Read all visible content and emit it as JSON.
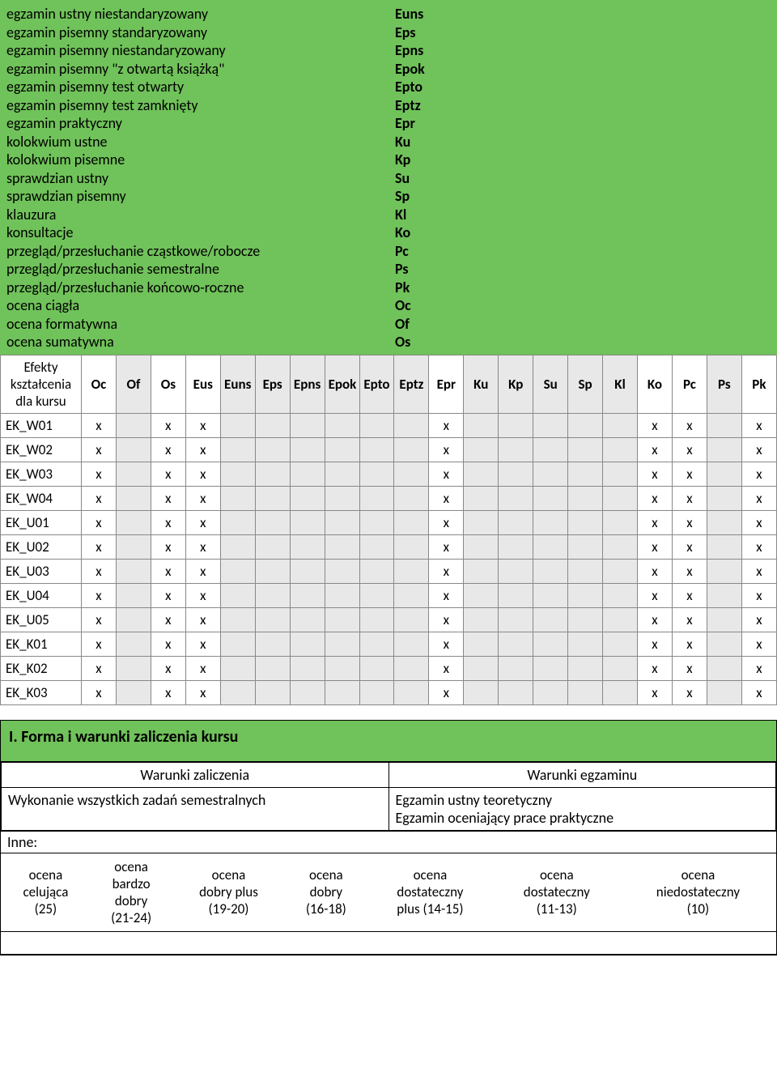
{
  "legend": [
    {
      "desc": "egzamin ustny niestandaryzowany",
      "code": "Euns"
    },
    {
      "desc": "egzamin pisemny standaryzowany",
      "code": "Eps"
    },
    {
      "desc": "egzamin pisemny niestandaryzowany",
      "code": "Epns"
    },
    {
      "desc": "egzamin pisemny \"z otwartą książką\"",
      "code": "Epok"
    },
    {
      "desc": "egzamin pisemny test otwarty",
      "code": "Epto"
    },
    {
      "desc": "egzamin pisemny test zamknięty",
      "code": "Eptz"
    },
    {
      "desc": "egzamin praktyczny",
      "code": "Epr"
    },
    {
      "desc": "kolokwium ustne",
      "code": "Ku"
    },
    {
      "desc": "kolokwium pisemne",
      "code": "Kp"
    },
    {
      "desc": "sprawdzian ustny",
      "code": "Su"
    },
    {
      "desc": "sprawdzian pisemny",
      "code": "Sp"
    },
    {
      "desc": "klauzura",
      "code": "Kl"
    },
    {
      "desc": "konsultacje",
      "code": "Ko"
    },
    {
      "desc": "przegląd/przesłuchanie cząstkowe/robocze",
      "code": "Pc"
    },
    {
      "desc": "przegląd/przesłuchanie semestralne",
      "code": "Ps"
    },
    {
      "desc": "przegląd/przesłuchanie końcowo-roczne",
      "code": "Pk"
    },
    {
      "desc": "ocena ciągła",
      "code": "Oc"
    },
    {
      "desc": "ocena formatywna",
      "code": "Of"
    },
    {
      "desc": "ocena sumatywna",
      "code": "Os"
    }
  ],
  "matrix": {
    "first_header": "Efekty kształcenia dla kursu",
    "columns": [
      "Oc",
      "Of",
      "Os",
      "Eus",
      "Euns",
      "Eps",
      "Epns",
      "Epok",
      "Epto",
      "Eptz",
      "Epr",
      "Ku",
      "Kp",
      "Su",
      "Sp",
      "Kl",
      "Ko",
      "Pc",
      "Ps",
      "Pk"
    ],
    "white_cols": [
      0,
      2,
      3,
      10,
      16,
      17,
      19
    ],
    "row_labels": [
      "EK_W01",
      "EK_W02",
      "EK_W03",
      "EK_W04",
      "EK_U01",
      "EK_U02",
      "EK_U03",
      "EK_U04",
      "EK_U05",
      "EK_K01",
      "EK_K02",
      "EK_K03"
    ],
    "mark": "x",
    "mark_cols": [
      0,
      2,
      3,
      10,
      16,
      17,
      19
    ]
  },
  "section2": {
    "title": "I. Forma i warunki zaliczenia kursu",
    "cond_headers": [
      "Warunki zaliczenia",
      "Warunki egzaminu"
    ],
    "cond_left": "Wykonanie wszystkich zadań semestralnych",
    "cond_right_1": "Egzamin ustny teoretyczny",
    "cond_right_2": "Egzamin oceniający prace praktyczne",
    "inne": "Inne:",
    "grades": [
      {
        "l1": "ocena",
        "l2": "celująca",
        "l3": "",
        "l4": "(25)"
      },
      {
        "l1": "ocena",
        "l2": "bardzo",
        "l3": "dobry",
        "l4": "(21-24)"
      },
      {
        "l1": "ocena",
        "l2": "dobry plus",
        "l3": "(19-20)",
        "l4": ""
      },
      {
        "l1": "ocena",
        "l2": "dobry",
        "l3": "(16-18)",
        "l4": ""
      },
      {
        "l1": "ocena",
        "l2": "dostateczny",
        "l3": "plus (14-15)",
        "l4": ""
      },
      {
        "l1": "ocena",
        "l2": "dostateczny",
        "l3": "(11-13)",
        "l4": ""
      },
      {
        "l1": "ocena",
        "l2": "niedostateczny",
        "l3": "(10)",
        "l4": ""
      }
    ]
  },
  "colors": {
    "green": "#70c25a",
    "grey": "#e8e8e8"
  }
}
